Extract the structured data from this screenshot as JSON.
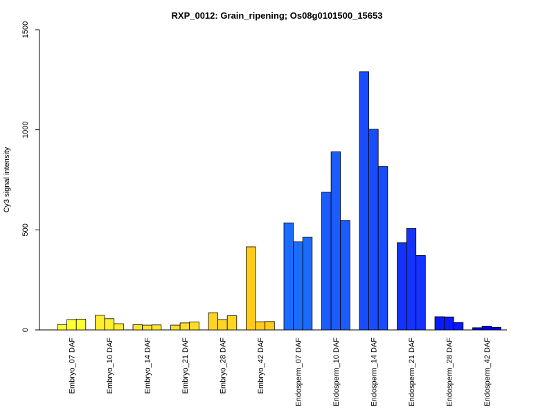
{
  "chart_data": {
    "type": "bar",
    "title": "RXP_0012: Grain_ripening; Os08g0101500_15653",
    "xlabel": "",
    "ylabel": "Cy3 signal intensity",
    "ylim": [
      0,
      1500
    ],
    "yticks": [
      0,
      500,
      1000,
      1500
    ],
    "grid": false,
    "replicates_per_category": 3,
    "categories": [
      "Embryo_07 DAF",
      "Embryo_10 DAF",
      "Embryo_14 DAF",
      "Embryo_21 DAF",
      "Embryo_28 DAF",
      "Embryo_42 DAF",
      "Endosperm_07 DAF",
      "Endosperm_10 DAF",
      "Endosperm_14 DAF",
      "Endosperm_21 DAF",
      "Endosperm_28 DAF",
      "Endosperm_42 DAF"
    ],
    "values": [
      [
        27,
        52,
        54
      ],
      [
        73,
        56,
        31
      ],
      [
        26,
        24,
        25
      ],
      [
        24,
        35,
        40
      ],
      [
        86,
        52,
        71
      ],
      [
        415,
        41,
        42
      ],
      [
        535,
        440,
        463
      ],
      [
        688,
        890,
        547
      ],
      [
        1290,
        1003,
        817
      ],
      [
        436,
        507,
        372
      ],
      [
        66,
        65,
        37
      ],
      [
        11,
        19,
        13
      ]
    ],
    "colors": [
      "#ffff33",
      "#ffee2e",
      "#ffe52a",
      "#ffdd26",
      "#ffd422",
      "#ffcc1a",
      "#1a6cff",
      "#1a5cff",
      "#1a4cff",
      "#1433ff",
      "#0a1aff",
      "#0000e6"
    ]
  }
}
